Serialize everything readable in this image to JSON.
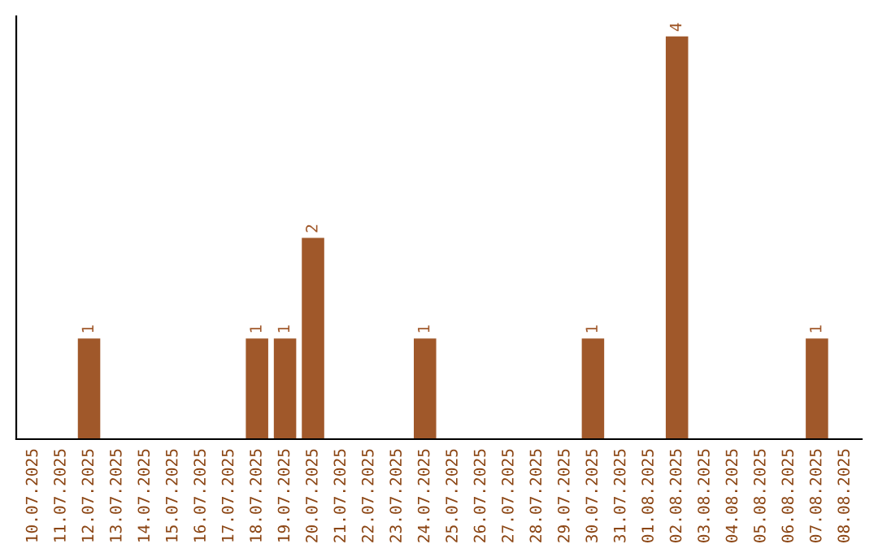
{
  "chart_data": {
    "type": "bar",
    "categories": [
      "10.07.2025",
      "11.07.2025",
      "12.07.2025",
      "13.07.2025",
      "14.07.2025",
      "15.07.2025",
      "16.07.2025",
      "17.07.2025",
      "18.07.2025",
      "19.07.2025",
      "20.07.2025",
      "21.07.2025",
      "22.07.2025",
      "23.07.2025",
      "24.07.2025",
      "25.07.2025",
      "26.07.2025",
      "27.07.2025",
      "28.07.2025",
      "29.07.2025",
      "30.07.2025",
      "31.07.2025",
      "01.08.2025",
      "02.08.2025",
      "03.08.2025",
      "04.08.2025",
      "05.08.2025",
      "06.08.2025",
      "07.08.2025",
      "08.08.2025"
    ],
    "values": [
      0,
      0,
      1,
      0,
      0,
      0,
      0,
      0,
      1,
      1,
      2,
      0,
      0,
      0,
      1,
      0,
      0,
      0,
      0,
      0,
      1,
      0,
      0,
      4,
      0,
      0,
      0,
      0,
      1,
      0
    ],
    "value_labels": [
      null,
      null,
      "1",
      null,
      null,
      null,
      null,
      null,
      "1",
      "1",
      "2",
      null,
      null,
      null,
      "1",
      null,
      null,
      null,
      null,
      null,
      "1",
      null,
      null,
      "4",
      null,
      null,
      null,
      null,
      "1",
      null
    ],
    "color": "#a0582a",
    "tick_labels": "x",
    "grid": false,
    "legend": false
  }
}
